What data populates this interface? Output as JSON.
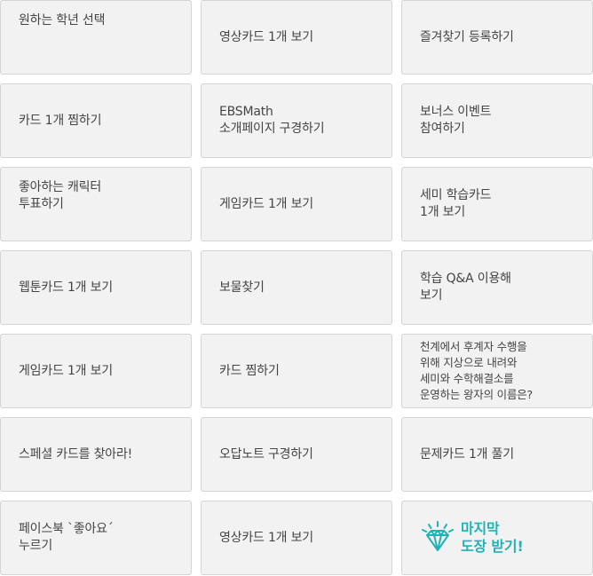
{
  "missions": [
    {
      "label": "원하는 학년 선택"
    },
    {
      "label": "영상카드 1개 보기"
    },
    {
      "label": "즐겨찾기 등록하기"
    },
    {
      "label": "카드 1개 찜하기"
    },
    {
      "label": "EBSMath\n소개페이지 구경하기"
    },
    {
      "label": "보너스 이벤트\n참여하기"
    },
    {
      "label": "좋아하는 캐릭터\n투표하기"
    },
    {
      "label": "게임카드 1개 보기"
    },
    {
      "label": "세미 학습카드\n1개 보기"
    },
    {
      "label": "웹툰카드 1개 보기"
    },
    {
      "label": "보물찾기"
    },
    {
      "label": "학습 Q&A 이용해\n보기"
    },
    {
      "label": "게임카드 1개 보기"
    },
    {
      "label": "카드 찜하기"
    },
    {
      "label": "천계에서 후계자 수행을\n위해 지상으로 내려와\n세미와 수학해결소를\n운영하는 왕자의 이름은?"
    },
    {
      "label": "스페셜 카드를 찾아라!"
    },
    {
      "label": "오답노트 구경하기"
    },
    {
      "label": "문제카드 1개 풀기"
    },
    {
      "label": "페이스북 `좋아요´\n누르기"
    },
    {
      "label": "영상카드 1개 보기"
    }
  ],
  "final": {
    "label": "마지막\n도장 받기!",
    "icon": "diamond-icon",
    "color": "#1fb2b6"
  }
}
